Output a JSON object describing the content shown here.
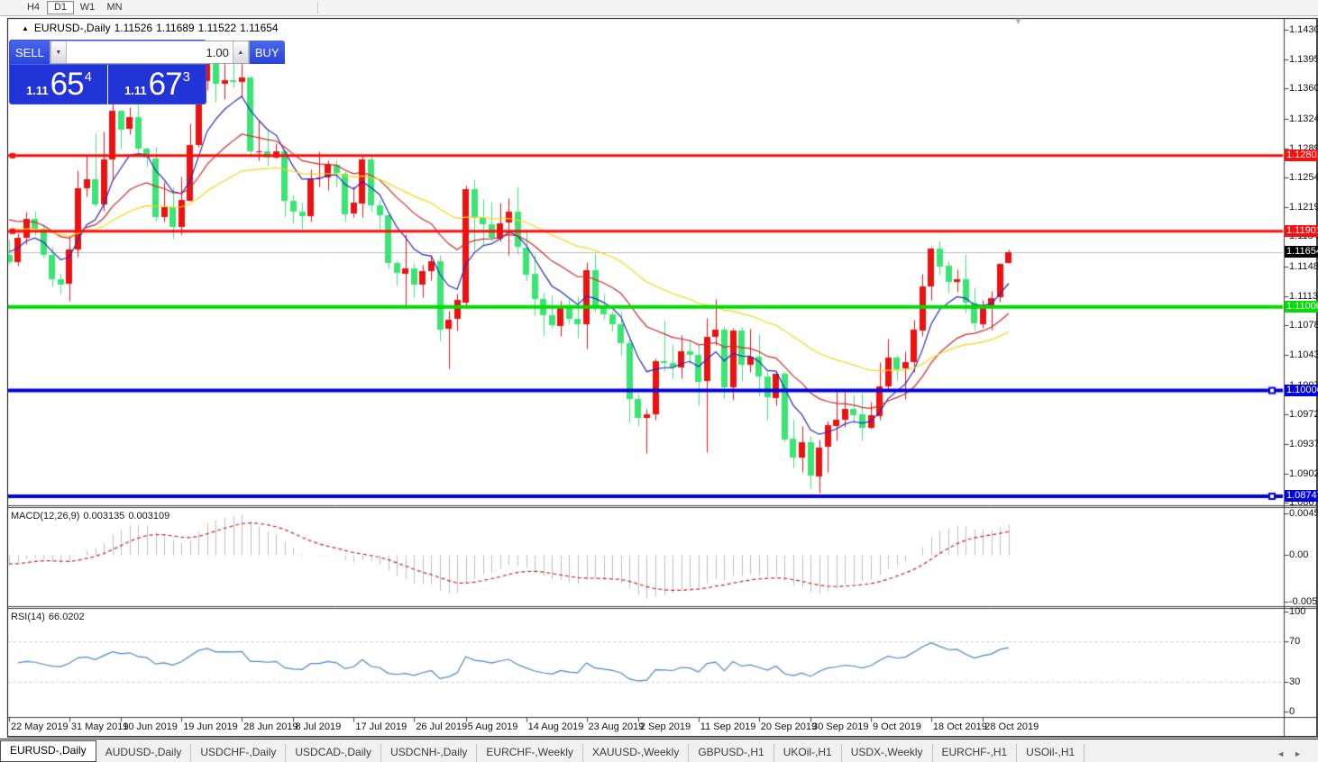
{
  "toolbar": {
    "timeframes": [
      {
        "label": "H4",
        "active": false
      },
      {
        "label": "D1",
        "active": true
      },
      {
        "label": "W1",
        "active": false
      },
      {
        "label": "MN",
        "active": false
      }
    ]
  },
  "quote": {
    "arrow": "▲",
    "symbol": "EURUSD-,Daily",
    "open": "1.11526",
    "high": "1.11689",
    "low": "1.11522",
    "close": "1.11654"
  },
  "scroll_arrow": "▼",
  "trade_panel": {
    "sell_label": "SELL",
    "buy_label": "BUY",
    "volume": "1.00",
    "volume_down": "▼",
    "volume_up": "▲",
    "sell_price_prefix": "1.11",
    "sell_price_big": "65",
    "sell_price_sup": "4",
    "buy_price_prefix": "1.11",
    "buy_price_big": "67",
    "buy_price_sup": "3"
  },
  "price_axis": {
    "labels": [
      "1.14300",
      "1.13950",
      "1.13600",
      "1.13240",
      "1.12890",
      "1.12540",
      "1.12190",
      "1.11840",
      "1.11480",
      "1.11130",
      "1.10780",
      "1.10430",
      "1.10070",
      "1.09720",
      "1.09370",
      "1.09020",
      "1.08670"
    ]
  },
  "hlines": [
    {
      "price": 1.12801,
      "label": "1.12801",
      "color": "#fe0d0d",
      "width": 3,
      "handle": "left"
    },
    {
      "price": 1.11901,
      "label": "1.11901",
      "color": "#fe0d0d",
      "width": 3,
      "handle": "left"
    },
    {
      "price": 1.11,
      "label": "1.11000",
      "color": "#00dd00",
      "width": 4,
      "handle": "none"
    },
    {
      "price": 1.10006,
      "label": "1.10006",
      "color": "#0000e0",
      "width": 4,
      "handle": "right"
    },
    {
      "price": 1.08747,
      "label": "1.08747",
      "color": "#0000e0",
      "width": 4,
      "handle": "right"
    }
  ],
  "current_price": {
    "price": 1.11654,
    "label": "1.11654",
    "line_color": "#bdbdbd",
    "badge_bg": "#000000"
  },
  "chart_data": {
    "type": "candlestick",
    "symbol": "EURUSD-",
    "timeframe": "Daily",
    "bull_color": "#ee1111",
    "bear_color": "#3ae573",
    "columns": [
      "date",
      "open",
      "high",
      "low",
      "close"
    ],
    "candles": [
      [
        "2019-05-22",
        1.1162,
        1.118,
        1.1151,
        1.1153
      ],
      [
        "2019-05-23",
        1.1153,
        1.1188,
        1.1149,
        1.1182
      ],
      [
        "2019-05-24",
        1.1182,
        1.1213,
        1.1175,
        1.1205
      ],
      [
        "2019-05-27",
        1.1205,
        1.1215,
        1.1186,
        1.1193
      ],
      [
        "2019-05-28",
        1.1193,
        1.1198,
        1.1159,
        1.1162
      ],
      [
        "2019-05-29",
        1.1162,
        1.1172,
        1.1125,
        1.1133
      ],
      [
        "2019-05-30",
        1.1133,
        1.1141,
        1.1116,
        1.1127
      ],
      [
        "2019-05-31",
        1.1127,
        1.1184,
        1.1107,
        1.1168
      ],
      [
        "2019-06-03",
        1.1168,
        1.1263,
        1.116,
        1.1241
      ],
      [
        "2019-06-04",
        1.1241,
        1.128,
        1.1232,
        1.1252
      ],
      [
        "2019-06-05",
        1.1252,
        1.1307,
        1.122,
        1.1222
      ],
      [
        "2019-06-06",
        1.1222,
        1.1309,
        1.1215,
        1.1276
      ],
      [
        "2019-06-07",
        1.1276,
        1.1348,
        1.1251,
        1.1334
      ],
      [
        "2019-06-10",
        1.1334,
        1.1335,
        1.1289,
        1.1312
      ],
      [
        "2019-06-11",
        1.1312,
        1.1338,
        1.1306,
        1.1326
      ],
      [
        "2019-06-12",
        1.1326,
        1.1344,
        1.1284,
        1.1288
      ],
      [
        "2019-06-13",
        1.1288,
        1.1291,
        1.1267,
        1.1277
      ],
      [
        "2019-06-14",
        1.1277,
        1.1291,
        1.1202,
        1.1207
      ],
      [
        "2019-06-17",
        1.1207,
        1.1249,
        1.1202,
        1.1219
      ],
      [
        "2019-06-18",
        1.1219,
        1.1243,
        1.1181,
        1.1195
      ],
      [
        "2019-06-19",
        1.1195,
        1.1255,
        1.1187,
        1.1227
      ],
      [
        "2019-06-20",
        1.1227,
        1.1318,
        1.1226,
        1.1293
      ],
      [
        "2019-06-21",
        1.1293,
        1.1378,
        1.1291,
        1.1369
      ],
      [
        "2019-06-24",
        1.1369,
        1.1404,
        1.1358,
        1.1399
      ],
      [
        "2019-06-25",
        1.1399,
        1.1412,
        1.1344,
        1.1366
      ],
      [
        "2019-06-26",
        1.1366,
        1.1391,
        1.1347,
        1.137
      ],
      [
        "2019-06-27",
        1.137,
        1.1392,
        1.1361,
        1.1368
      ],
      [
        "2019-06-28",
        1.1368,
        1.1394,
        1.1351,
        1.1373
      ],
      [
        "2019-07-01",
        1.1373,
        1.1375,
        1.1281,
        1.1285
      ],
      [
        "2019-07-02",
        1.1285,
        1.1322,
        1.1275,
        1.1285
      ],
      [
        "2019-07-03",
        1.1285,
        1.1312,
        1.1268,
        1.1278
      ],
      [
        "2019-07-04",
        1.1278,
        1.1295,
        1.1277,
        1.1285
      ],
      [
        "2019-07-05",
        1.1285,
        1.1287,
        1.1207,
        1.1226
      ],
      [
        "2019-07-08",
        1.1226,
        1.1234,
        1.1199,
        1.1213
      ],
      [
        "2019-07-09",
        1.1213,
        1.1224,
        1.1193,
        1.1208
      ],
      [
        "2019-07-10",
        1.1208,
        1.1264,
        1.1202,
        1.1253
      ],
      [
        "2019-07-11",
        1.1253,
        1.1285,
        1.1243,
        1.1254
      ],
      [
        "2019-07-12",
        1.1254,
        1.1275,
        1.1239,
        1.1269
      ],
      [
        "2019-07-15",
        1.1269,
        1.1276,
        1.1244,
        1.1259
      ],
      [
        "2019-07-16",
        1.1259,
        1.1262,
        1.1202,
        1.1211
      ],
      [
        "2019-07-17",
        1.1211,
        1.1243,
        1.1207,
        1.1224
      ],
      [
        "2019-07-18",
        1.1224,
        1.1282,
        1.1207,
        1.1276
      ],
      [
        "2019-07-19",
        1.1276,
        1.1282,
        1.1213,
        1.1221
      ],
      [
        "2019-07-22",
        1.1221,
        1.1227,
        1.1191,
        1.1209
      ],
      [
        "2019-07-23",
        1.1209,
        1.1211,
        1.1146,
        1.1152
      ],
      [
        "2019-07-24",
        1.1152,
        1.1156,
        1.1126,
        1.114
      ],
      [
        "2019-07-25",
        1.114,
        1.1187,
        1.1101,
        1.1146
      ],
      [
        "2019-07-26",
        1.1146,
        1.1152,
        1.1112,
        1.1127
      ],
      [
        "2019-07-29",
        1.1127,
        1.115,
        1.1112,
        1.1143
      ],
      [
        "2019-07-30",
        1.1143,
        1.1162,
        1.1132,
        1.1155
      ],
      [
        "2019-07-31",
        1.1155,
        1.1162,
        1.106,
        1.1074
      ],
      [
        "2019-08-01",
        1.1074,
        1.1096,
        1.1027,
        1.1085
      ],
      [
        "2019-08-02",
        1.1085,
        1.1116,
        1.1072,
        1.1108
      ],
      [
        "2019-08-05",
        1.1105,
        1.1245,
        1.11,
        1.124
      ],
      [
        "2019-08-06",
        1.124,
        1.1252,
        1.1167,
        1.1206
      ],
      [
        "2019-08-07",
        1.1206,
        1.1228,
        1.1173,
        1.1198
      ],
      [
        "2019-08-08",
        1.1198,
        1.1225,
        1.1178,
        1.1182
      ],
      [
        "2019-08-09",
        1.1182,
        1.1224,
        1.1178,
        1.12
      ],
      [
        "2019-08-12",
        1.12,
        1.123,
        1.1162,
        1.1213
      ],
      [
        "2019-08-13",
        1.1213,
        1.1244,
        1.1163,
        1.1171
      ],
      [
        "2019-08-14",
        1.1171,
        1.1192,
        1.1131,
        1.1139
      ],
      [
        "2019-08-15",
        1.1139,
        1.1163,
        1.109,
        1.1109
      ],
      [
        "2019-08-16",
        1.1109,
        1.1117,
        1.1066,
        1.109
      ],
      [
        "2019-08-19",
        1.109,
        1.1114,
        1.1075,
        1.1078
      ],
      [
        "2019-08-20",
        1.1078,
        1.1107,
        1.1066,
        1.11
      ],
      [
        "2019-08-21",
        1.11,
        1.1109,
        1.1081,
        1.1086
      ],
      [
        "2019-08-22",
        1.1086,
        1.1113,
        1.1063,
        1.108
      ],
      [
        "2019-08-23",
        1.108,
        1.1153,
        1.1051,
        1.1144
      ],
      [
        "2019-08-26",
        1.1144,
        1.1164,
        1.1094,
        1.1101
      ],
      [
        "2019-08-27",
        1.1101,
        1.1116,
        1.1086,
        1.1091
      ],
      [
        "2019-08-28",
        1.1091,
        1.1096,
        1.1072,
        1.1079
      ],
      [
        "2019-08-29",
        1.1079,
        1.1094,
        1.1042,
        1.1057
      ],
      [
        "2019-08-30",
        1.1057,
        1.1061,
        1.0963,
        1.0991
      ],
      [
        "2019-09-02",
        1.0991,
        1.0997,
        1.0958,
        1.0968
      ],
      [
        "2019-09-03",
        1.0968,
        1.0979,
        1.0926,
        1.0972
      ],
      [
        "2019-09-04",
        1.0972,
        1.1039,
        1.0966,
        1.1035
      ],
      [
        "2019-09-05",
        1.1035,
        1.1085,
        1.1024,
        1.1033
      ],
      [
        "2019-09-06",
        1.1033,
        1.1056,
        1.1015,
        1.1028
      ],
      [
        "2019-09-09",
        1.1028,
        1.1067,
        1.1015,
        1.1047
      ],
      [
        "2019-09-10",
        1.1047,
        1.106,
        1.1032,
        1.1043
      ],
      [
        "2019-09-11",
        1.1043,
        1.1055,
        1.0983,
        1.1011
      ],
      [
        "2019-09-12",
        1.1011,
        1.1087,
        1.0927,
        1.1064
      ],
      [
        "2019-09-13",
        1.1064,
        1.111,
        1.1055,
        1.1073
      ],
      [
        "2019-09-16",
        1.1073,
        1.1077,
        1.0992,
        1.1004
      ],
      [
        "2019-09-17",
        1.1004,
        1.1075,
        1.0989,
        1.1072
      ],
      [
        "2019-09-18",
        1.1072,
        1.1076,
        1.1012,
        1.1031
      ],
      [
        "2019-09-19",
        1.1031,
        1.1074,
        1.1023,
        1.1041
      ],
      [
        "2019-09-20",
        1.1041,
        1.1068,
        1.0995,
        1.1017
      ],
      [
        "2019-09-23",
        1.1017,
        1.1024,
        1.0966,
        1.0992
      ],
      [
        "2019-09-24",
        1.0992,
        1.1024,
        1.0983,
        1.1021
      ],
      [
        "2019-09-25",
        1.1021,
        1.1024,
        1.094,
        1.0943
      ],
      [
        "2019-09-26",
        1.0943,
        1.0966,
        1.0909,
        1.0921
      ],
      [
        "2019-09-27",
        1.0921,
        1.0958,
        1.0904,
        1.0939
      ],
      [
        "2019-09-30",
        1.0939,
        1.0946,
        1.0884,
        1.0899
      ],
      [
        "2019-10-01",
        1.0899,
        1.0942,
        1.0879,
        1.0933
      ],
      [
        "2019-10-02",
        1.0933,
        1.0965,
        1.0904,
        1.0959
      ],
      [
        "2019-10-03",
        1.0959,
        1.0999,
        1.0941,
        1.0966
      ],
      [
        "2019-10-04",
        1.0966,
        1.0999,
        1.0957,
        1.0979
      ],
      [
        "2019-10-07",
        1.0979,
        1.0996,
        1.0962,
        1.0972
      ],
      [
        "2019-10-08",
        1.0972,
        1.0998,
        1.0941,
        1.0956
      ],
      [
        "2019-10-09",
        1.0956,
        1.0987,
        1.0955,
        1.0971
      ],
      [
        "2019-10-10",
        1.0971,
        1.1034,
        1.0966,
        1.1006
      ],
      [
        "2019-10-11",
        1.1006,
        1.1062,
        1.1002,
        1.104
      ],
      [
        "2019-10-14",
        1.104,
        1.1043,
        1.1013,
        1.1026
      ],
      [
        "2019-10-15",
        1.1026,
        1.1047,
        1.0991,
        1.1034
      ],
      [
        "2019-10-16",
        1.1034,
        1.1085,
        1.1023,
        1.1073
      ],
      [
        "2019-10-17",
        1.1073,
        1.114,
        1.1066,
        1.1125
      ],
      [
        "2019-10-18",
        1.1125,
        1.1172,
        1.1108,
        1.117
      ],
      [
        "2019-10-21",
        1.117,
        1.1179,
        1.1138,
        1.1149
      ],
      [
        "2019-10-22",
        1.1149,
        1.1154,
        1.1117,
        1.113
      ],
      [
        "2019-10-23",
        1.113,
        1.1145,
        1.1118,
        1.1133
      ],
      [
        "2019-10-24",
        1.1133,
        1.1163,
        1.1093,
        1.1105
      ],
      [
        "2019-10-25",
        1.1105,
        1.1123,
        1.1073,
        1.108
      ],
      [
        "2019-10-28",
        1.108,
        1.1108,
        1.1075,
        1.1099
      ],
      [
        "2019-10-29",
        1.1099,
        1.1119,
        1.1073,
        1.1111
      ],
      [
        "2019-10-30",
        1.1111,
        1.1152,
        1.1106,
        1.1151
      ],
      [
        "2019-10-31",
        1.11526,
        1.11689,
        1.11522,
        1.11654
      ]
    ],
    "x_labels": [
      {
        "text": "22 May 2019",
        "index": 0
      },
      {
        "text": "31 May 2019",
        "index": 7
      },
      {
        "text": "10 Jun 2019",
        "index": 13
      },
      {
        "text": "19 Jun 2019",
        "index": 20
      },
      {
        "text": "28 Jun 2019",
        "index": 27
      },
      {
        "text": "8 Jul 2019",
        "index": 33
      },
      {
        "text": "17 Jul 2019",
        "index": 40
      },
      {
        "text": "26 Jul 2019",
        "index": 47
      },
      {
        "text": "5 Aug 2019",
        "index": 53
      },
      {
        "text": "14 Aug 2019",
        "index": 60
      },
      {
        "text": "23 Aug 2019",
        "index": 67
      },
      {
        "text": "2 Sep 2019",
        "index": 73
      },
      {
        "text": "11 Sep 2019",
        "index": 80
      },
      {
        "text": "20 Sep 2019",
        "index": 87
      },
      {
        "text": "30 Sep 2019",
        "index": 93
      },
      {
        "text": "9 Oct 2019",
        "index": 100
      },
      {
        "text": "18 Oct 2019",
        "index": 107
      },
      {
        "text": "28 Oct 2019",
        "index": 113
      }
    ],
    "moving_averages": [
      {
        "period": 7,
        "color": "#2828c8",
        "seed": 1.117
      },
      {
        "period": 18,
        "color": "#d02828",
        "seed": 1.121
      },
      {
        "period": 40,
        "color": "#f5d514",
        "seed": 1.1195
      }
    ],
    "macd": {
      "label": "MACD(12,26,9)",
      "fast": 12,
      "slow": 26,
      "signal": 9,
      "value_main": "0.003135",
      "value_signal": "0.003109",
      "bar_color": "#bdbdbd",
      "signal_color": "#d42020",
      "axis_labels": [
        "0.004536",
        "0.00",
        "-0.005205"
      ],
      "range": [
        -0.005205,
        0.004536
      ],
      "seed_fast": 1.1168,
      "seed_slow": 1.1178
    },
    "rsi": {
      "label": "RSI(14)",
      "period": 14,
      "value": "66.0202",
      "color": "#4a86c8",
      "levels": [
        70,
        30
      ],
      "axis_labels": [
        "100",
        "70",
        "30",
        "0"
      ],
      "range": [
        0,
        100
      ]
    }
  },
  "tabs": {
    "items": [
      {
        "label": "EURUSD-,Daily",
        "active": true
      },
      {
        "label": "AUDUSD-,Daily",
        "active": false
      },
      {
        "label": "USDCHF-,Daily",
        "active": false
      },
      {
        "label": "USDCAD-,Daily",
        "active": false
      },
      {
        "label": "USDCNH-,Daily",
        "active": false
      },
      {
        "label": "EURCHF-,Weekly",
        "active": false
      },
      {
        "label": "XAUUSD-,Weekly",
        "active": false
      },
      {
        "label": "GBPUSD-,H1",
        "active": false
      },
      {
        "label": "UKOil-,H1",
        "active": false
      },
      {
        "label": "USDX-,Weekly",
        "active": false
      },
      {
        "label": "EURCHF-,H1",
        "active": false
      },
      {
        "label": "USOil-,H1",
        "active": false
      }
    ],
    "nav_left": "◄",
    "nav_right": "►"
  }
}
